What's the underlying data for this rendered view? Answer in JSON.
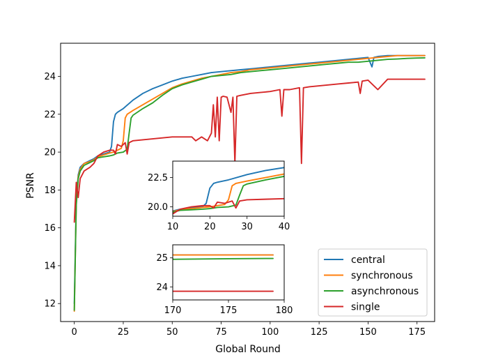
{
  "chart_data": {
    "type": "line",
    "xlabel": "Global Round",
    "ylabel": "PSNR",
    "xlim": [
      -7,
      184
    ],
    "ylim": [
      11.05,
      25.75
    ],
    "xticks": [
      0,
      25,
      50,
      75,
      100,
      125,
      150,
      175
    ],
    "yticks": [
      12,
      14,
      16,
      18,
      20,
      22,
      24
    ],
    "legend_position": "lower-right",
    "colors": {
      "central": "#1f77b4",
      "synchronous": "#ff7f0e",
      "asynchronous": "#2ca02c",
      "single": "#d62728"
    },
    "series": [
      {
        "name": "central",
        "x": [
          0,
          1,
          2,
          3,
          5,
          8,
          10,
          12,
          15,
          18,
          19,
          20,
          21,
          22,
          25,
          30,
          35,
          40,
          45,
          50,
          55,
          60,
          65,
          70,
          75,
          80,
          85,
          90,
          95,
          100,
          105,
          110,
          115,
          120,
          125,
          130,
          135,
          140,
          145,
          150,
          152,
          153,
          155,
          160,
          165,
          170,
          175,
          179
        ],
        "y": [
          12.0,
          17.5,
          18.8,
          19.2,
          19.4,
          19.55,
          19.65,
          19.8,
          19.9,
          20.0,
          20.3,
          21.6,
          22.0,
          22.1,
          22.3,
          22.75,
          23.1,
          23.35,
          23.55,
          23.75,
          23.9,
          24.0,
          24.1,
          24.2,
          24.25,
          24.3,
          24.35,
          24.4,
          24.45,
          24.5,
          24.55,
          24.6,
          24.65,
          24.7,
          24.75,
          24.8,
          24.85,
          24.9,
          24.95,
          25.0,
          24.5,
          25.0,
          25.05,
          25.1,
          25.1,
          25.1,
          25.1,
          25.1
        ]
      },
      {
        "name": "synchronous",
        "x": [
          0,
          1,
          2,
          3,
          5,
          8,
          10,
          12,
          15,
          18,
          20,
          22,
          24,
          25,
          26,
          27,
          30,
          35,
          40,
          45,
          50,
          55,
          60,
          65,
          70,
          75,
          80,
          85,
          90,
          95,
          100,
          105,
          110,
          115,
          120,
          125,
          130,
          135,
          140,
          145,
          150,
          155,
          160,
          165,
          170,
          175,
          179
        ],
        "y": [
          11.6,
          17.3,
          18.7,
          19.1,
          19.4,
          19.5,
          19.6,
          19.75,
          19.85,
          19.95,
          20.0,
          20.1,
          20.2,
          20.6,
          21.8,
          22.0,
          22.2,
          22.5,
          22.8,
          23.1,
          23.4,
          23.6,
          23.75,
          23.9,
          24.0,
          24.1,
          24.2,
          24.25,
          24.35,
          24.4,
          24.45,
          24.5,
          24.55,
          24.6,
          24.65,
          24.7,
          24.75,
          24.8,
          24.85,
          24.9,
          24.95,
          25.0,
          25.05,
          25.1,
          25.1,
          25.1,
          25.1
        ]
      },
      {
        "name": "asynchronous",
        "x": [
          0,
          1,
          2,
          3,
          5,
          8,
          10,
          12,
          15,
          18,
          20,
          22,
          25,
          27,
          28,
          29,
          30,
          35,
          40,
          45,
          50,
          55,
          60,
          65,
          70,
          75,
          80,
          85,
          90,
          95,
          100,
          105,
          110,
          115,
          120,
          125,
          130,
          135,
          140,
          145,
          150,
          155,
          160,
          165,
          170,
          175,
          179
        ],
        "y": [
          11.65,
          17.2,
          18.6,
          19.0,
          19.3,
          19.45,
          19.55,
          19.7,
          19.75,
          19.8,
          19.85,
          19.95,
          20.0,
          20.15,
          21.0,
          21.8,
          21.95,
          22.3,
          22.6,
          23.0,
          23.35,
          23.55,
          23.7,
          23.85,
          24.0,
          24.05,
          24.1,
          24.2,
          24.25,
          24.3,
          24.35,
          24.4,
          24.45,
          24.5,
          24.55,
          24.6,
          24.65,
          24.7,
          24.75,
          24.75,
          24.8,
          24.85,
          24.9,
          24.92,
          24.95,
          24.97,
          24.98
        ]
      },
      {
        "name": "single",
        "x": [
          0,
          1,
          2,
          3,
          5,
          8,
          10,
          12,
          15,
          18,
          20,
          21,
          22,
          24,
          26,
          27,
          28,
          30,
          35,
          40,
          45,
          50,
          55,
          60,
          62,
          65,
          68,
          70,
          71,
          72,
          73,
          74,
          75,
          76,
          78,
          80,
          81,
          82,
          83,
          85,
          90,
          95,
          100,
          105,
          106,
          107,
          110,
          115,
          116,
          117,
          120,
          125,
          130,
          135,
          140,
          145,
          146,
          147,
          150,
          155,
          160,
          165,
          170,
          175,
          179
        ],
        "y": [
          16.3,
          18.4,
          17.6,
          18.6,
          19.0,
          19.2,
          19.4,
          19.8,
          20.0,
          20.1,
          20.1,
          19.9,
          20.4,
          20.3,
          20.5,
          19.9,
          20.5,
          20.6,
          20.65,
          20.7,
          20.75,
          20.8,
          20.8,
          20.8,
          20.6,
          20.8,
          20.6,
          21.0,
          22.5,
          20.8,
          22.9,
          20.6,
          22.9,
          22.95,
          22.9,
          22.1,
          22.9,
          19.4,
          22.95,
          23.0,
          23.1,
          23.15,
          23.2,
          23.3,
          21.9,
          23.3,
          23.3,
          23.4,
          19.4,
          23.4,
          23.45,
          23.5,
          23.55,
          23.6,
          23.65,
          23.7,
          23.1,
          23.75,
          23.8,
          23.3,
          23.85,
          23.85,
          23.85,
          23.85,
          23.85
        ]
      }
    ],
    "insets": [
      {
        "position": "center-left",
        "xlim": [
          10,
          40
        ],
        "ylim": [
          19.2,
          23.9
        ],
        "xticks": [
          10,
          20,
          30,
          40
        ],
        "yticks": [
          20.0,
          22.5
        ],
        "ytick_labels": [
          "20.0",
          "22.5"
        ]
      },
      {
        "position": "bottom-center",
        "xlim": [
          170,
          180
        ],
        "ylim": [
          23.55,
          25.45
        ],
        "xticks": [
          170,
          175,
          180
        ],
        "yticks": [
          24,
          25
        ],
        "ytick_labels": [
          "24",
          "25"
        ]
      }
    ]
  }
}
